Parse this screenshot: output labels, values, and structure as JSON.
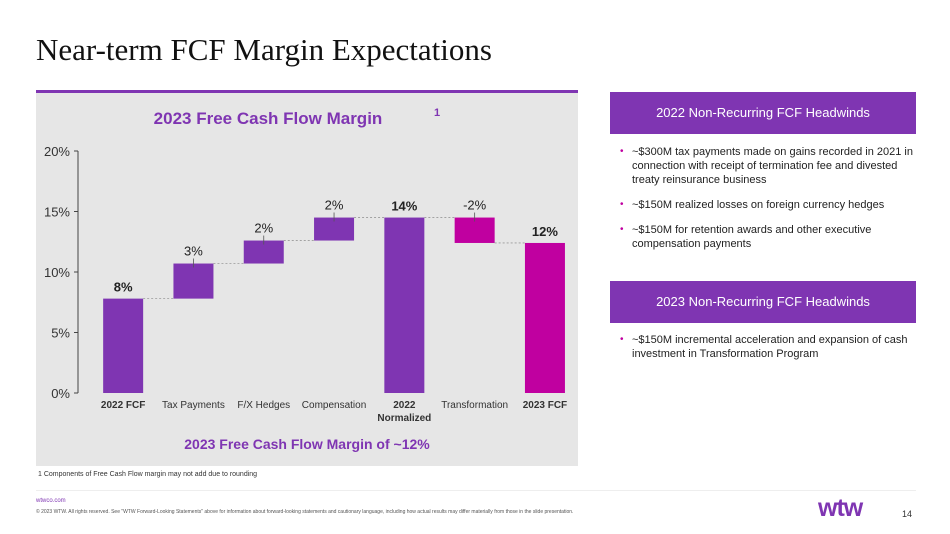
{
  "slide": {
    "title": "Near-term FCF Margin Expectations",
    "footnote": "1 Components of Free Cash Flow margin may not add due to rounding",
    "footer_link": "wtwco.com",
    "footer_legal": "© 2023 WTW. All rights reserved. See \"WTW Forward-Looking Statements\" above for information about forward-looking statements and cautionary language, including how actual results may differ materially from those in the slide presentation.",
    "logo": "wtw",
    "page_number": "14"
  },
  "chart_data": {
    "type": "waterfall",
    "title": "2023 Free Cash Flow Margin",
    "title_superscript": "1",
    "footer": "2023 Free Cash Flow Margin of ~12%",
    "ylim": [
      0,
      20
    ],
    "yticks": [
      "0%",
      "5%",
      "10%",
      "15%",
      "20%"
    ],
    "ytick_values": [
      0,
      5,
      10,
      15,
      20
    ],
    "grid": false,
    "bars": [
      {
        "label": "2022 FCF",
        "start": 0,
        "end": 7.8,
        "value_label": "8%",
        "kind": "total",
        "bold": true
      },
      {
        "label": "Tax Payments",
        "start": 7.8,
        "end": 10.7,
        "value_label": "3%",
        "kind": "change",
        "bold": false
      },
      {
        "label": "F/X Hedges",
        "start": 10.7,
        "end": 12.6,
        "value_label": "2%",
        "kind": "change",
        "bold": false
      },
      {
        "label": "Compensation",
        "start": 12.6,
        "end": 14.5,
        "value_label": "2%",
        "kind": "change",
        "bold": false
      },
      {
        "label": "2022 Normalized",
        "start": 0,
        "end": 14.5,
        "value_label": "14%",
        "kind": "total",
        "bold": true
      },
      {
        "label": "Transformation",
        "start": 14.5,
        "end": 12.4,
        "value_label": "-2%",
        "kind": "negative",
        "bold": false
      },
      {
        "label": "2023 FCF",
        "start": 0,
        "end": 12.4,
        "value_label": "12%",
        "kind": "result",
        "bold": true
      }
    ],
    "colors": {
      "total": "#7f35b2",
      "change": "#7f35b2",
      "negative": "#c000a0",
      "result": "#c000a0"
    }
  },
  "sidebar": {
    "section1": {
      "header": "2022 Non-Recurring FCF Headwinds",
      "items": [
        "~$300M tax payments made on gains recorded in 2021 in connection with receipt of termination fee and divested treaty reinsurance business",
        "~$150M realized losses on foreign currency hedges",
        "~$150M for retention awards and other executive compensation payments"
      ]
    },
    "section2": {
      "header": "2023 Non-Recurring FCF Headwinds",
      "items": [
        "~$150M incremental acceleration and expansion of cash investment in Transformation Program"
      ]
    }
  }
}
